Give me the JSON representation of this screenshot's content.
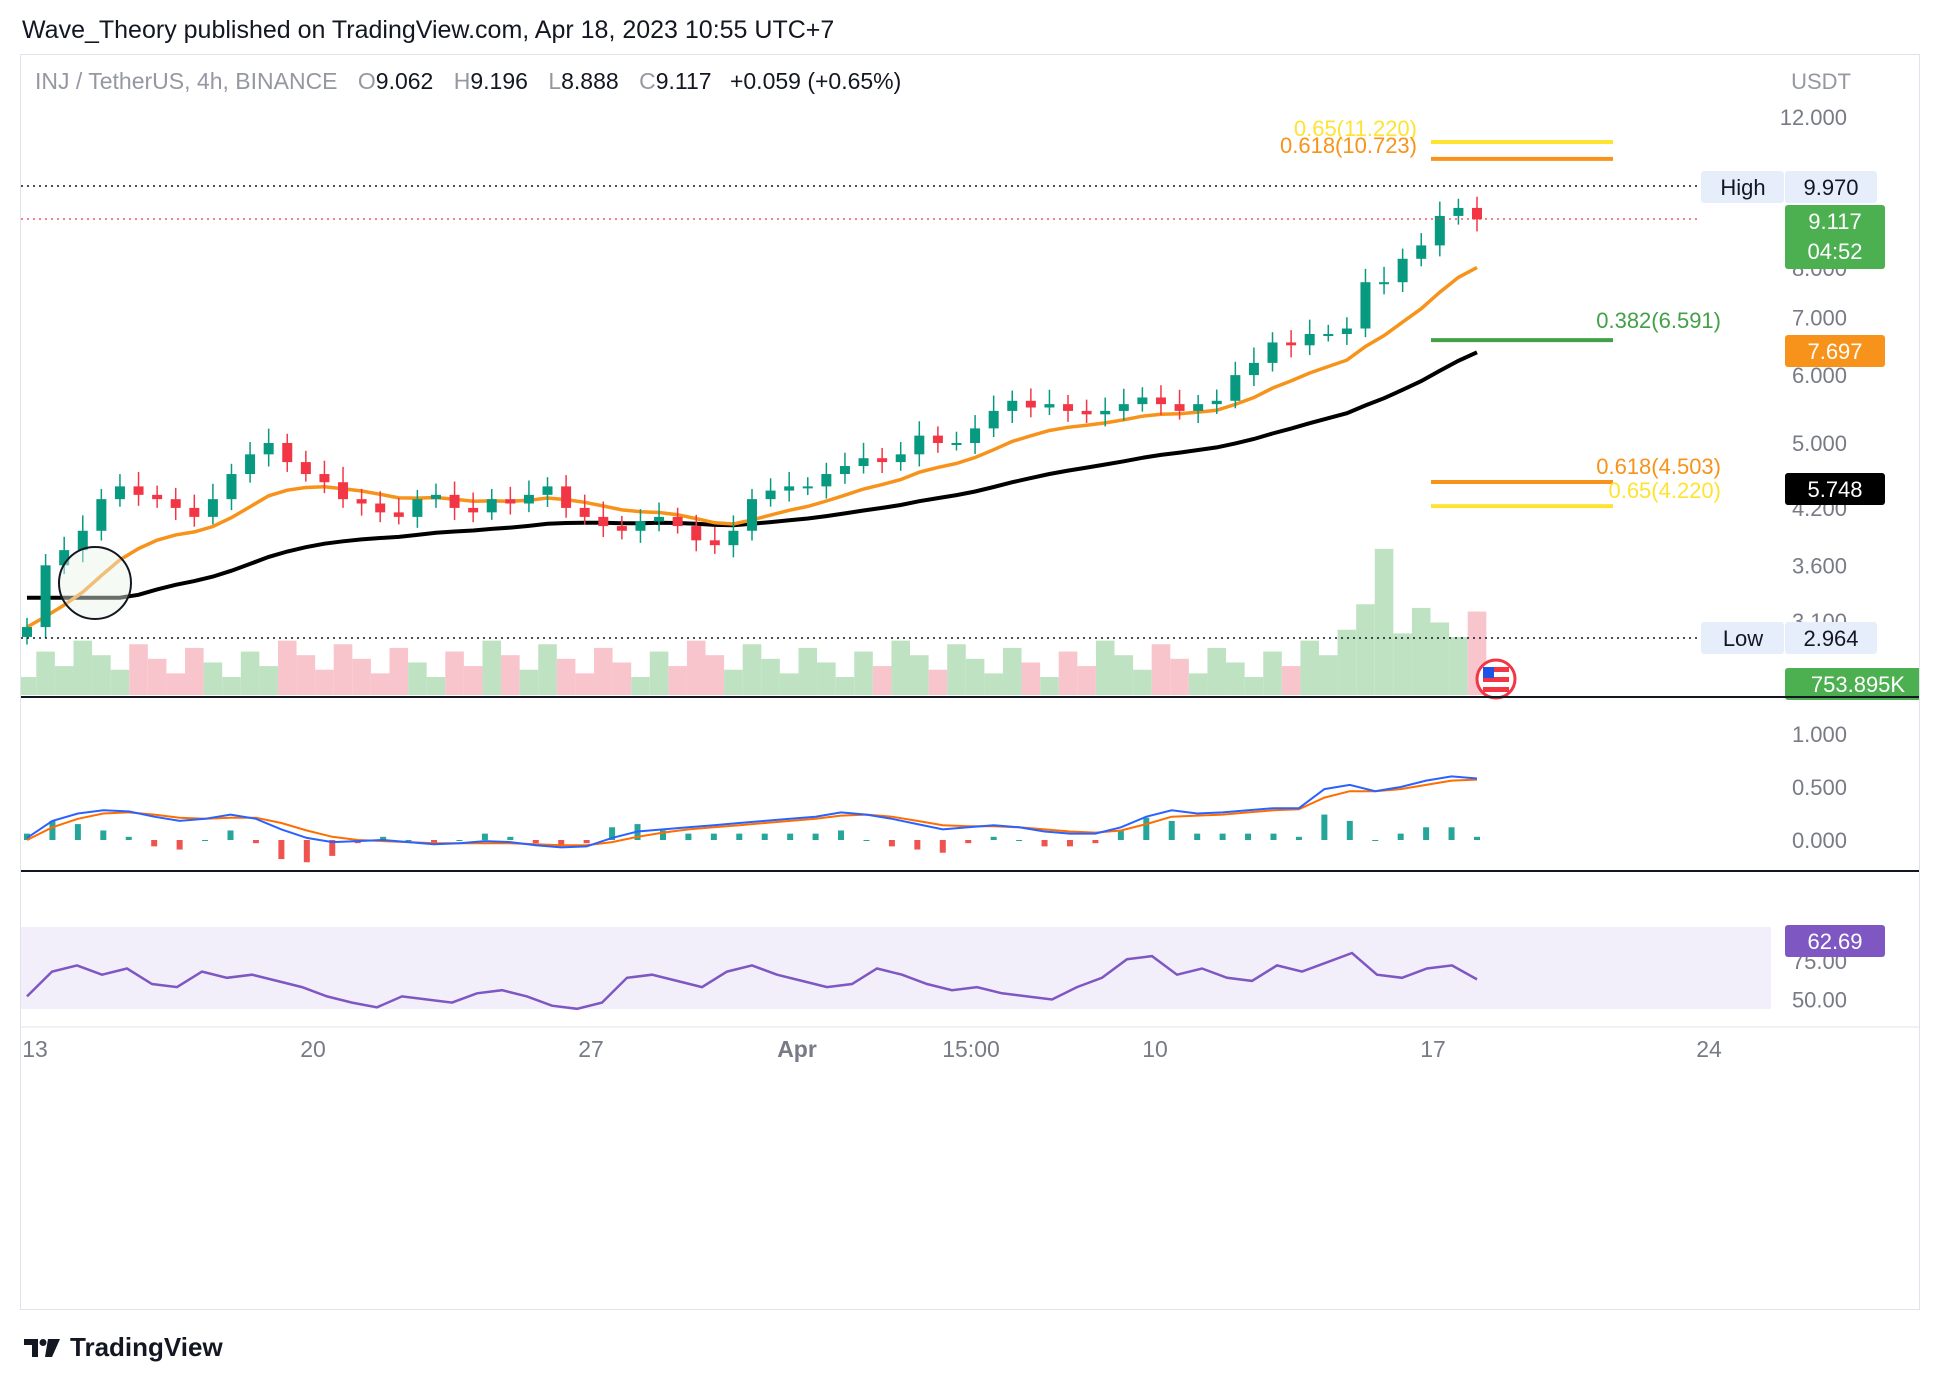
{
  "publisher_line": "Wave_Theory published on TradingView.com, Apr 18, 2023 10:55 UTC+7",
  "brand": "TradingView",
  "legend": {
    "symbol": "INJ / TetherUS, 4h, BINANCE",
    "o_label": "O",
    "o": "9.062",
    "h_label": "H",
    "h": "9.196",
    "l_label": "L",
    "l": "8.888",
    "c_label": "C",
    "c": "9.117",
    "change": "+0.059 (+0.65%)"
  },
  "colors": {
    "up": "#089981",
    "down": "#f23645",
    "ema50": "#f7931a",
    "ema200": "#000000",
    "fib_0618": "#f7931a",
    "fib_065": "#ffe333",
    "fib_0382": "#43a047",
    "macd": "#2962ff",
    "signal": "#ff6d00",
    "rsi": "#7e57c2",
    "rsi_band": "#f3effa",
    "vol_up": "#bfe3c2",
    "vol_down": "#f7c5cb"
  },
  "chart_data": {
    "type": "candlestick",
    "axis_unit": "USDT",
    "price_ticks": [
      "12.000",
      "7.000",
      "5.000",
      "4.200",
      "3.600",
      "3.100"
    ],
    "price_ticks_partial": [
      "8.000",
      "6.000"
    ],
    "x_ticks": [
      "13",
      "20",
      "27",
      "Apr",
      "15:00",
      "10",
      "17",
      "24"
    ],
    "high_marker": {
      "label": "High",
      "value": "9.970"
    },
    "low_marker": {
      "label": "Low",
      "value": "2.964"
    },
    "last_price": "9.117",
    "countdown": "04:52",
    "ema50_value": "7.697",
    "ema200_value": "5.748",
    "volume_value": "753.895K",
    "fib_levels": [
      {
        "label": "0.65(11.220)",
        "value": 11.22,
        "color": "#ffe333"
      },
      {
        "label": "0.618(10.723)",
        "value": 10.723,
        "color": "#f7931a"
      },
      {
        "label": "0.382(6.591)",
        "value": 6.591,
        "color": "#43a047"
      },
      {
        "label": "0.618(4.503)",
        "value": 4.503,
        "color": "#f7931a"
      },
      {
        "label": "0.65(4.220)",
        "value": 4.22,
        "color": "#ffe333"
      }
    ],
    "closes_approx": [
      3.05,
      3.6,
      3.75,
      3.95,
      4.3,
      4.45,
      4.35,
      4.3,
      4.2,
      4.1,
      4.3,
      4.6,
      4.85,
      5.0,
      4.75,
      4.6,
      4.5,
      4.3,
      4.25,
      4.15,
      4.1,
      4.3,
      4.35,
      4.2,
      4.15,
      4.3,
      4.25,
      4.35,
      4.45,
      4.2,
      4.1,
      4.0,
      3.95,
      4.05,
      4.1,
      4.0,
      3.85,
      3.8,
      3.95,
      4.3,
      4.4,
      4.45,
      4.45,
      4.6,
      4.7,
      4.8,
      4.75,
      4.85,
      5.1,
      5.0,
      5.0,
      5.2,
      5.45,
      5.6,
      5.5,
      5.55,
      5.45,
      5.4,
      5.45,
      5.55,
      5.65,
      5.55,
      5.45,
      5.55,
      5.6,
      6.0,
      6.2,
      6.55,
      6.5,
      6.7,
      6.7,
      6.8,
      7.7,
      7.7,
      8.2,
      8.5,
      9.2,
      9.4,
      9.117
    ],
    "macd": {
      "ticks": [
        "1.000",
        "0.500",
        "0.000"
      ],
      "macd_line_approx": [
        0.02,
        0.18,
        0.25,
        0.28,
        0.27,
        0.22,
        0.18,
        0.2,
        0.24,
        0.2,
        0.1,
        0.02,
        -0.02,
        -0.01,
        0.0,
        -0.02,
        -0.04,
        -0.03,
        -0.01,
        -0.02,
        -0.05,
        -0.07,
        -0.06,
        0.02,
        0.08,
        0.1,
        0.12,
        0.14,
        0.16,
        0.18,
        0.2,
        0.22,
        0.26,
        0.24,
        0.2,
        0.15,
        0.1,
        0.12,
        0.14,
        0.12,
        0.08,
        0.06,
        0.06,
        0.12,
        0.22,
        0.28,
        0.25,
        0.26,
        0.28,
        0.3,
        0.3,
        0.48,
        0.52,
        0.46,
        0.5,
        0.56,
        0.6,
        0.58
      ],
      "signal_line_approx": [
        0.0,
        0.12,
        0.2,
        0.25,
        0.26,
        0.24,
        0.21,
        0.2,
        0.21,
        0.21,
        0.16,
        0.09,
        0.03,
        0.0,
        -0.01,
        -0.02,
        -0.03,
        -0.03,
        -0.03,
        -0.03,
        -0.04,
        -0.05,
        -0.05,
        -0.02,
        0.03,
        0.07,
        0.1,
        0.12,
        0.14,
        0.16,
        0.18,
        0.2,
        0.23,
        0.24,
        0.22,
        0.18,
        0.14,
        0.13,
        0.13,
        0.12,
        0.1,
        0.08,
        0.07,
        0.09,
        0.15,
        0.22,
        0.23,
        0.24,
        0.26,
        0.28,
        0.29,
        0.4,
        0.46,
        0.46,
        0.48,
        0.52,
        0.56,
        0.57
      ]
    },
    "rsi": {
      "ticks": [
        "75.00",
        "50.00"
      ],
      "value": "62.69",
      "values_approx": [
        52,
        68,
        72,
        66,
        70,
        60,
        58,
        68,
        64,
        66,
        62,
        58,
        52,
        48,
        45,
        52,
        50,
        48,
        54,
        56,
        52,
        46,
        44,
        48,
        64,
        66,
        62,
        58,
        68,
        72,
        66,
        62,
        58,
        60,
        70,
        66,
        60,
        56,
        58,
        54,
        52,
        50,
        58,
        64,
        76,
        78,
        66,
        70,
        64,
        62,
        72,
        68,
        74,
        80,
        66,
        64,
        70,
        72,
        63
      ]
    }
  }
}
